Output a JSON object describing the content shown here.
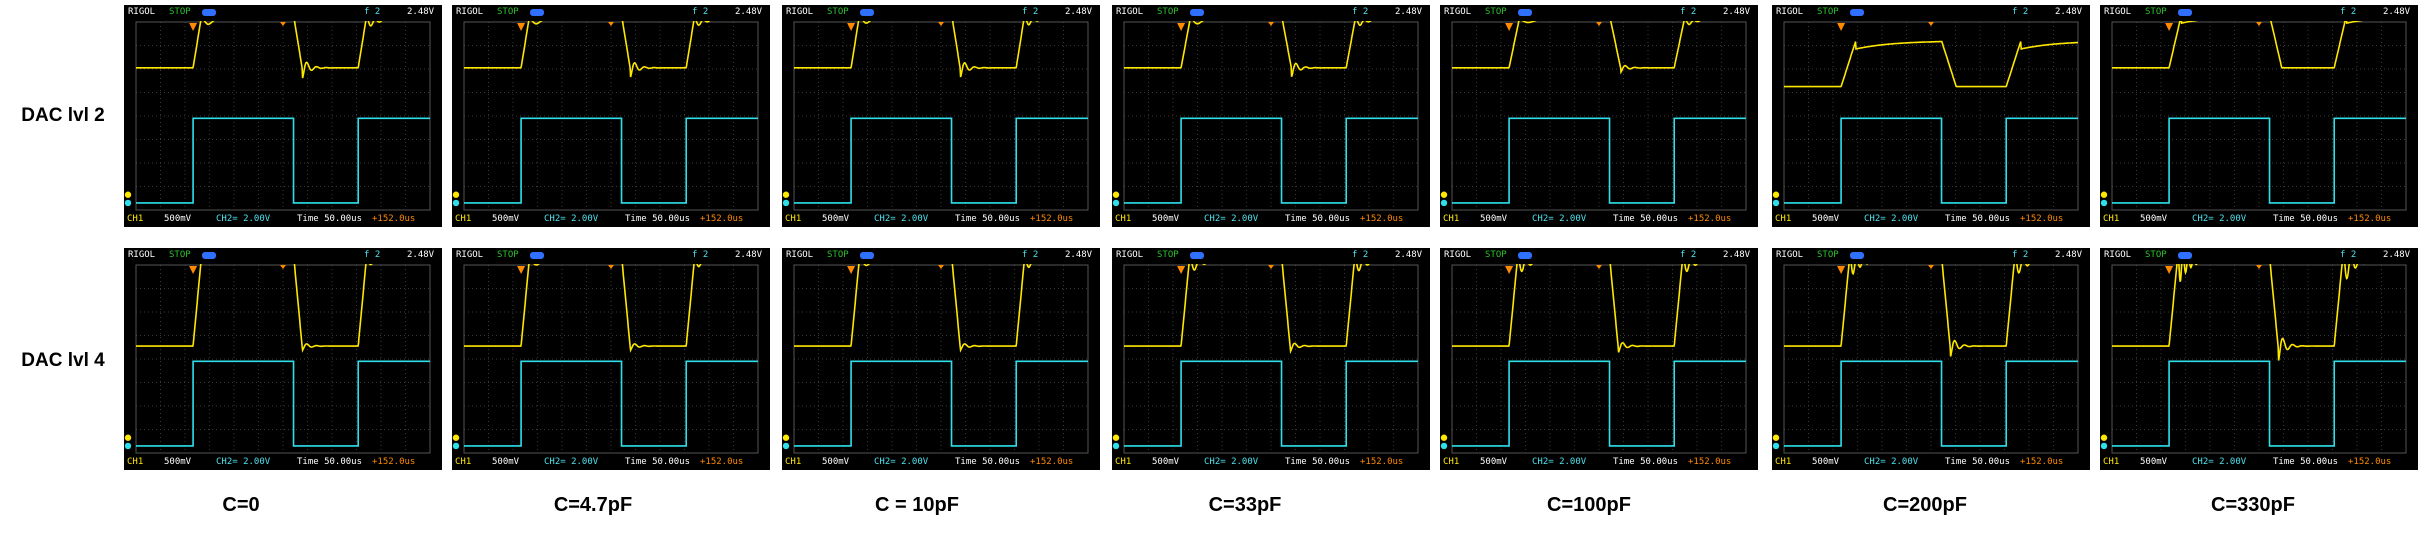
{
  "rows": [
    {
      "label": "DAC lvl 2"
    },
    {
      "label": "DAC lvl 4"
    }
  ],
  "columns": [
    {
      "label": "C=0"
    },
    {
      "label": "C=4.7pF"
    },
    {
      "label": "C = 10pF"
    },
    {
      "label": "C=33pF"
    },
    {
      "label": "C=100pF"
    },
    {
      "label": "C=200pF"
    },
    {
      "label": "C=330pF"
    }
  ],
  "scope_ui": {
    "brand": "RIGOL",
    "status": "STOP",
    "trigger_symbol": "f",
    "trigger_channel": "2",
    "trigger_level": "2.48V",
    "ch1_label": "CH1",
    "ch1_scale": "500mV",
    "ch2_scale": "CH2= 2.00V",
    "timebase": "Time 50.00us",
    "offset": "+152.0us"
  },
  "colors": {
    "ch1_trace": "#ffe800",
    "ch2_trace": "#2ee0ec",
    "grid": "#3a3a3a",
    "background": "#000000"
  },
  "chart_data": {
    "type": "line",
    "title": "",
    "xlabel": "",
    "ylabel": "",
    "x_units": "time (divisions, 50.00us/div)",
    "y_units": "screen divisions",
    "series_note": "CH1 yellow = DAC output, CH2 cyan = digital input",
    "ch2_square": {
      "low_div": 0.3,
      "high_div": 3.9,
      "edges_div": [
        0,
        2.33,
        6.43,
        9.07
      ],
      "levels": [
        "low",
        "high",
        "low",
        "high"
      ]
    },
    "panels": [
      {
        "row": "DAC lvl 2",
        "column": "C=0",
        "ch1_low_div": 6.05,
        "ch1_high_div": 8.3,
        "overshoot_div": 0.25,
        "ringing_div": 0.5,
        "rise_div": 0.35,
        "ringing_cycles": 1.5
      },
      {
        "row": "DAC lvl 2",
        "column": "C=4.7pF",
        "ch1_low_div": 6.05,
        "ch1_high_div": 8.3,
        "overshoot_div": 0.2,
        "ringing_div": 0.45,
        "rise_div": 0.35,
        "ringing_cycles": 1.5
      },
      {
        "row": "DAC lvl 2",
        "column": "C = 10pF",
        "ch1_low_div": 6.05,
        "ch1_high_div": 8.35,
        "overshoot_div": 0.25,
        "ringing_div": 0.45,
        "rise_div": 0.35,
        "ringing_cycles": 1.5
      },
      {
        "row": "DAC lvl 2",
        "column": "C=33pF",
        "ch1_low_div": 6.05,
        "ch1_high_div": 8.3,
        "overshoot_div": 0.2,
        "ringing_div": 0.4,
        "rise_div": 0.4,
        "ringing_cycles": 1.5
      },
      {
        "row": "DAC lvl 2",
        "column": "C=100pF",
        "ch1_low_div": 6.05,
        "ch1_high_div": 8.3,
        "overshoot_div": 0.15,
        "ringing_div": 0.2,
        "rise_div": 0.45,
        "ringing_cycles": 1.0
      },
      {
        "row": "DAC lvl 2",
        "column": "C=200pF",
        "ch1_low_div": 5.25,
        "ch1_high_div": 7.2,
        "overshoot_div": 0.0,
        "ringing_div": 0.0,
        "rise_div": 0.6,
        "ringing_cycles": 0
      },
      {
        "row": "DAC lvl 2",
        "column": "C=330pF",
        "ch1_low_div": 6.05,
        "ch1_high_div": 8.3,
        "overshoot_div": 0.0,
        "ringing_div": 0.0,
        "rise_div": 0.5,
        "ringing_cycles": 0
      },
      {
        "row": "DAC lvl 4",
        "column": "C=0",
        "ch1_low_div": 4.55,
        "ch1_high_div": 8.45,
        "overshoot_div": 0.2,
        "ringing_div": 0.2,
        "rise_div": 0.35,
        "ringing_cycles": 1.0
      },
      {
        "row": "DAC lvl 4",
        "column": "C=4.7pF",
        "ch1_low_div": 4.55,
        "ch1_high_div": 8.4,
        "overshoot_div": 0.25,
        "ringing_div": 0.2,
        "rise_div": 0.35,
        "ringing_cycles": 1.5
      },
      {
        "row": "DAC lvl 4",
        "column": "C = 10pF",
        "ch1_low_div": 4.55,
        "ch1_high_div": 8.4,
        "overshoot_div": 0.3,
        "ringing_div": 0.2,
        "rise_div": 0.35,
        "ringing_cycles": 1.5
      },
      {
        "row": "DAC lvl 4",
        "column": "C=33pF",
        "ch1_low_div": 4.55,
        "ch1_high_div": 8.35,
        "overshoot_div": 0.45,
        "ringing_div": 0.25,
        "rise_div": 0.35,
        "ringing_cycles": 2.5
      },
      {
        "row": "DAC lvl 4",
        "column": "C=100pF",
        "ch1_low_div": 4.55,
        "ch1_high_div": 8.35,
        "overshoot_div": 0.5,
        "ringing_div": 0.3,
        "rise_div": 0.35,
        "ringing_cycles": 3.0
      },
      {
        "row": "DAC lvl 4",
        "column": "C=200pF",
        "ch1_low_div": 4.55,
        "ch1_high_div": 8.35,
        "overshoot_div": 0.6,
        "ringing_div": 0.5,
        "rise_div": 0.35,
        "ringing_cycles": 4.0
      },
      {
        "row": "DAC lvl 4",
        "column": "C=330pF",
        "ch1_low_div": 4.55,
        "ch1_high_div": 8.35,
        "overshoot_div": 1.0,
        "ringing_div": 0.7,
        "rise_div": 0.35,
        "ringing_cycles": 6.0
      }
    ]
  }
}
